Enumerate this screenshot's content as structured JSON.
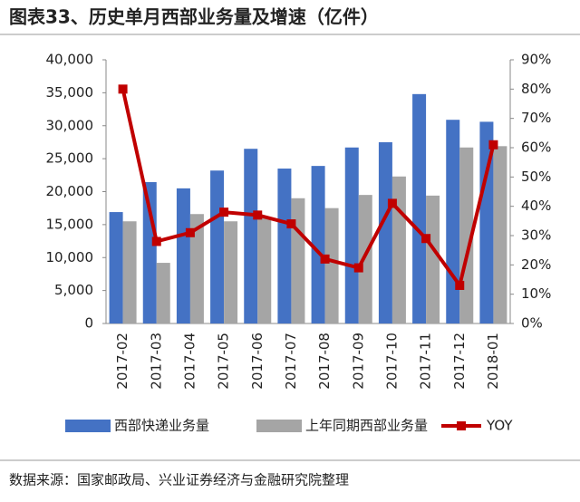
{
  "chart_data": {
    "type": "bar",
    "title": "图表33、历史单月西部业务量及增速（亿件）",
    "source": "数据来源：国家邮政局、兴业证券经济与金融研究院整理",
    "categories": [
      "2017-02",
      "2017-03",
      "2017-04",
      "2017-05",
      "2017-06",
      "2017-07",
      "2017-08",
      "2017-09",
      "2017-10",
      "2017-11",
      "2017-12",
      "2018-01"
    ],
    "series": [
      {
        "name": "西部快递业务量",
        "type": "bar",
        "color": "#4472c4",
        "values": [
          16900,
          21450,
          20500,
          23200,
          26500,
          23500,
          23900,
          26700,
          27500,
          34800,
          30900,
          30600
        ]
      },
      {
        "name": "上年同期西部业务量",
        "type": "bar",
        "color": "#a5a5a5",
        "values": [
          15500,
          9200,
          16600,
          15500,
          16100,
          19000,
          17500,
          19500,
          22300,
          19400,
          26700,
          26900
        ]
      },
      {
        "name": "YOY",
        "type": "line",
        "axis": "y2",
        "color": "#c00000",
        "values": [
          80,
          28,
          31,
          38,
          37,
          34,
          22,
          19,
          41,
          29,
          13,
          61
        ]
      }
    ],
    "ylim": [
      0,
      40000
    ],
    "yticks": [
      0,
      {
        "value": 5000,
        "label": "5,000"
      },
      {
        "value": 10000,
        "label": "10,000"
      },
      {
        "value": 15000,
        "label": "15,000"
      },
      {
        "value": 20000,
        "label": "20,000"
      },
      {
        "value": 25000,
        "label": "25,000"
      },
      {
        "value": 30000,
        "label": "30,000"
      },
      {
        "value": 35000,
        "label": "35,000"
      },
      {
        "value": 40000,
        "label": "40,000"
      }
    ],
    "y2lim": [
      0,
      90
    ],
    "y2ticks": [
      {
        "value": 0,
        "label": "0%"
      },
      {
        "value": 10,
        "label": "10%"
      },
      {
        "value": 20,
        "label": "20%"
      },
      {
        "value": 30,
        "label": "30%"
      },
      {
        "value": 40,
        "label": "40%"
      },
      {
        "value": 50,
        "label": "50%"
      },
      {
        "value": 60,
        "label": "60%"
      },
      {
        "value": 70,
        "label": "70%"
      },
      {
        "value": 80,
        "label": "80%"
      },
      {
        "value": 90,
        "label": "90%"
      }
    ],
    "grid": false
  }
}
